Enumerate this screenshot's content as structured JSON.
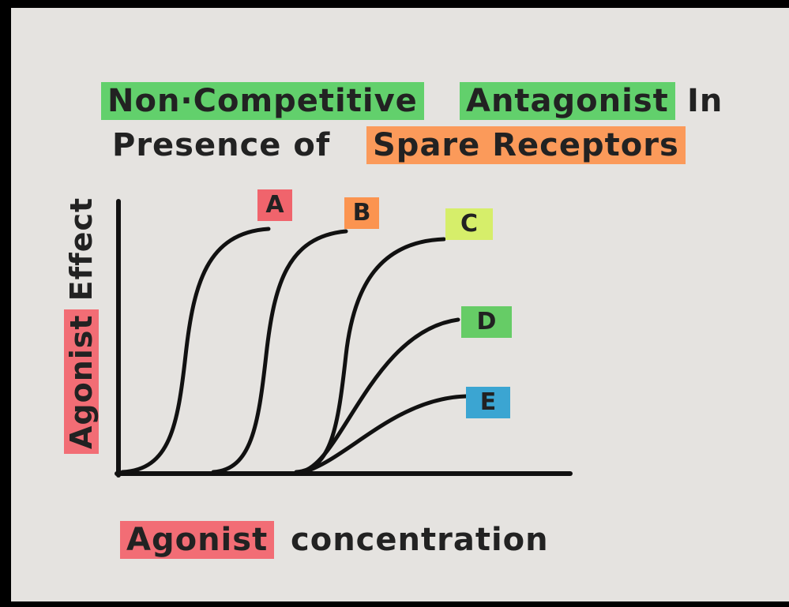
{
  "title": {
    "line1": [
      "Non·Competitive",
      "Antagonist",
      "In"
    ],
    "line2": [
      "Presence of",
      "Spare Receptors"
    ]
  },
  "y_axis_label": [
    "Agonist",
    "Effect"
  ],
  "x_axis_label": [
    "Agonist",
    "concentration"
  ],
  "curves": [
    {
      "label": "A"
    },
    {
      "label": "B"
    },
    {
      "label": "C"
    },
    {
      "label": "D"
    },
    {
      "label": "E"
    }
  ]
}
